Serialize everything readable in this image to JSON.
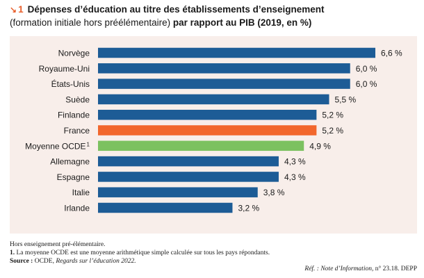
{
  "figure": {
    "arrow_icon": "arrow-down-right-icon",
    "number": "1",
    "title": "Dépenses d’éducation au titre des établissements d’enseignement",
    "subtitle_normal": "(formation initiale hors préélémentaire)",
    "subtitle_bold": "par rapport au PIB (2019, en %)"
  },
  "colors": {
    "panel_bg": "#f8eeea",
    "bar_default": "#1d5c96",
    "bar_france": "#f2672c",
    "bar_oecd": "#7cc160",
    "accent": "#e85e2b"
  },
  "chart_data": {
    "type": "bar",
    "orientation": "horizontal",
    "title": "Dépenses d’éducation au titre des établissements d’enseignement (formation initiale hors préélémentaire) par rapport au PIB (2019, en %)",
    "xlabel": "",
    "ylabel": "",
    "xlim": [
      0,
      6.6
    ],
    "grid": false,
    "value_suffix": " %",
    "categories": [
      "Norvège",
      "Royaume-Uni",
      "États-Unis",
      "Suède",
      "Finlande",
      "France",
      "Moyenne OCDE",
      "Allemagne",
      "Espagne",
      "Italie",
      "Irlande"
    ],
    "category_notes": [
      "",
      "",
      "",
      "",
      "",
      "",
      "1",
      "",
      "",
      "",
      ""
    ],
    "values": [
      6.6,
      6.0,
      6.0,
      5.5,
      5.2,
      5.2,
      4.9,
      4.3,
      4.3,
      3.8,
      3.2
    ],
    "value_labels": [
      "6,6 %",
      "6,0 %",
      "6,0 %",
      "5,5 %",
      "5,2 %",
      "5,2 %",
      "4,9 %",
      "4,3 %",
      "4,3 %",
      "3,8 %",
      "3,2 %"
    ],
    "highlight": [
      "default",
      "default",
      "default",
      "default",
      "default",
      "france",
      "oecd",
      "default",
      "default",
      "default",
      "default"
    ]
  },
  "notes": {
    "line1": "Hors enseignement pré-élémentaire.",
    "note1_num": "1.",
    "note1_text": " La moyenne OCDE est une moyenne arithmétique simple calculée sur tous les pays répondants.",
    "source_label": "Source :",
    "source_text_plain": " OCDE, ",
    "source_text_italic": "Regards sur l’éducation 2022.",
    "ref_label": "Réf. :",
    "ref_italic": "Note d’Information",
    "ref_rest": ", n° 23.18. DEPP"
  }
}
